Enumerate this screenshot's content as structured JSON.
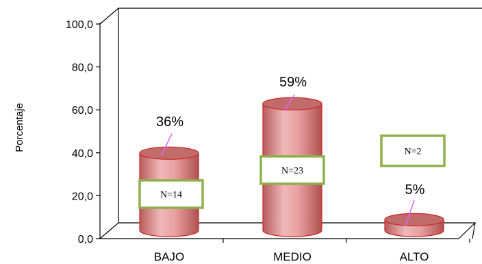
{
  "chart_data": {
    "type": "bar",
    "style": "3d-cylinder",
    "categories": [
      "BAJO",
      "MEDIO",
      "ALTO"
    ],
    "values": [
      36,
      59,
      5
    ],
    "value_labels": [
      "36%",
      "59%",
      "5%"
    ],
    "count_labels": [
      "N=14",
      "N=23",
      "N=2"
    ],
    "ylabel": "Porcentaje",
    "ylim": [
      0,
      100
    ],
    "yticks": [
      0,
      20,
      40,
      60,
      80,
      100
    ],
    "ytick_labels": [
      "0,0",
      "20,0",
      "40,0",
      "60,0",
      "80,0",
      "100,0"
    ],
    "grid": false,
    "legend": "none",
    "colors": {
      "bar_fill": "#e8a0a0",
      "bar_stroke": "#cc2222",
      "bar_top": "#c26b6b",
      "leader_line": "#e066ff",
      "count_box_border": "#8db04a",
      "axis": "#000000"
    }
  }
}
